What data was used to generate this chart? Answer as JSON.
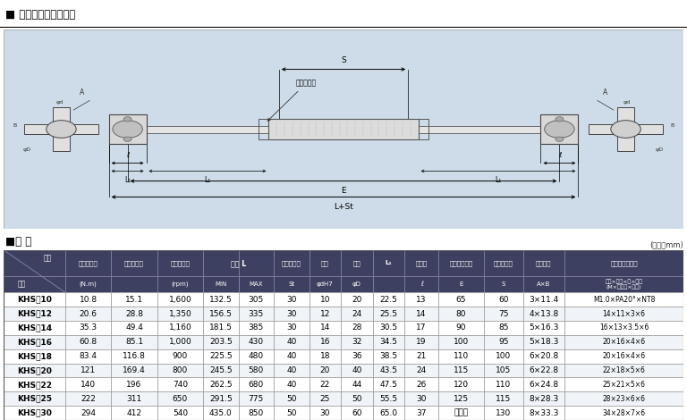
{
  "title": "■ 図面・製品仕様表組",
  "spec_title": "■仕 様",
  "unit_note": "(単位：mm)",
  "bg_color": "#c8dce8",
  "rows": [
    [
      "KHS－10",
      "10.8",
      "15.1",
      "1,600",
      "132.5",
      "305",
      "30",
      "10",
      "20",
      "22.5",
      "13",
      "65",
      "60",
      "3×11.4",
      "M1.0×PA20°×NT8"
    ],
    [
      "KHS－12",
      "20.6",
      "28.8",
      "1,350",
      "156.5",
      "335",
      "30",
      "12",
      "24",
      "25.5",
      "14",
      "80",
      "75",
      "4×13.8",
      "14×11×3×6"
    ],
    [
      "KHS－14",
      "35.3",
      "49.4",
      "1,160",
      "181.5",
      "385",
      "30",
      "14",
      "28",
      "30.5",
      "17",
      "90",
      "85",
      "5×16.3",
      "16×13×3.5×6"
    ],
    [
      "KHS－16",
      "60.8",
      "85.1",
      "1,000",
      "203.5",
      "430",
      "40",
      "16",
      "32",
      "34.5",
      "19",
      "100",
      "95",
      "5×18.3",
      "20×16×4×6"
    ],
    [
      "KHS－18",
      "83.4",
      "116.8",
      "900",
      "225.5",
      "480",
      "40",
      "18",
      "36",
      "38.5",
      "21",
      "110",
      "100",
      "6×20.8",
      "20×16×4×6"
    ],
    [
      "KHS－20",
      "121",
      "169.4",
      "800",
      "245.5",
      "580",
      "40",
      "20",
      "40",
      "43.5",
      "24",
      "115",
      "105",
      "6×22.8",
      "22×18×5×6"
    ],
    [
      "KHS－22",
      "140",
      "196",
      "740",
      "262.5",
      "680",
      "40",
      "22",
      "44",
      "47.5",
      "26",
      "120",
      "110",
      "6×24.8",
      "25×21×5×6"
    ],
    [
      "KHS－25",
      "222",
      "311",
      "650",
      "291.5",
      "775",
      "50",
      "25",
      "50",
      "55.5",
      "30",
      "125",
      "115",
      "8×28.3",
      "28×23×6×6"
    ],
    [
      "KHS－30",
      "294",
      "412",
      "540",
      "435.0",
      "850",
      "50",
      "30",
      "60",
      "65.0",
      "37",
      "カラー",
      "130",
      "8×33.3",
      "34×28×7×6"
    ]
  ]
}
